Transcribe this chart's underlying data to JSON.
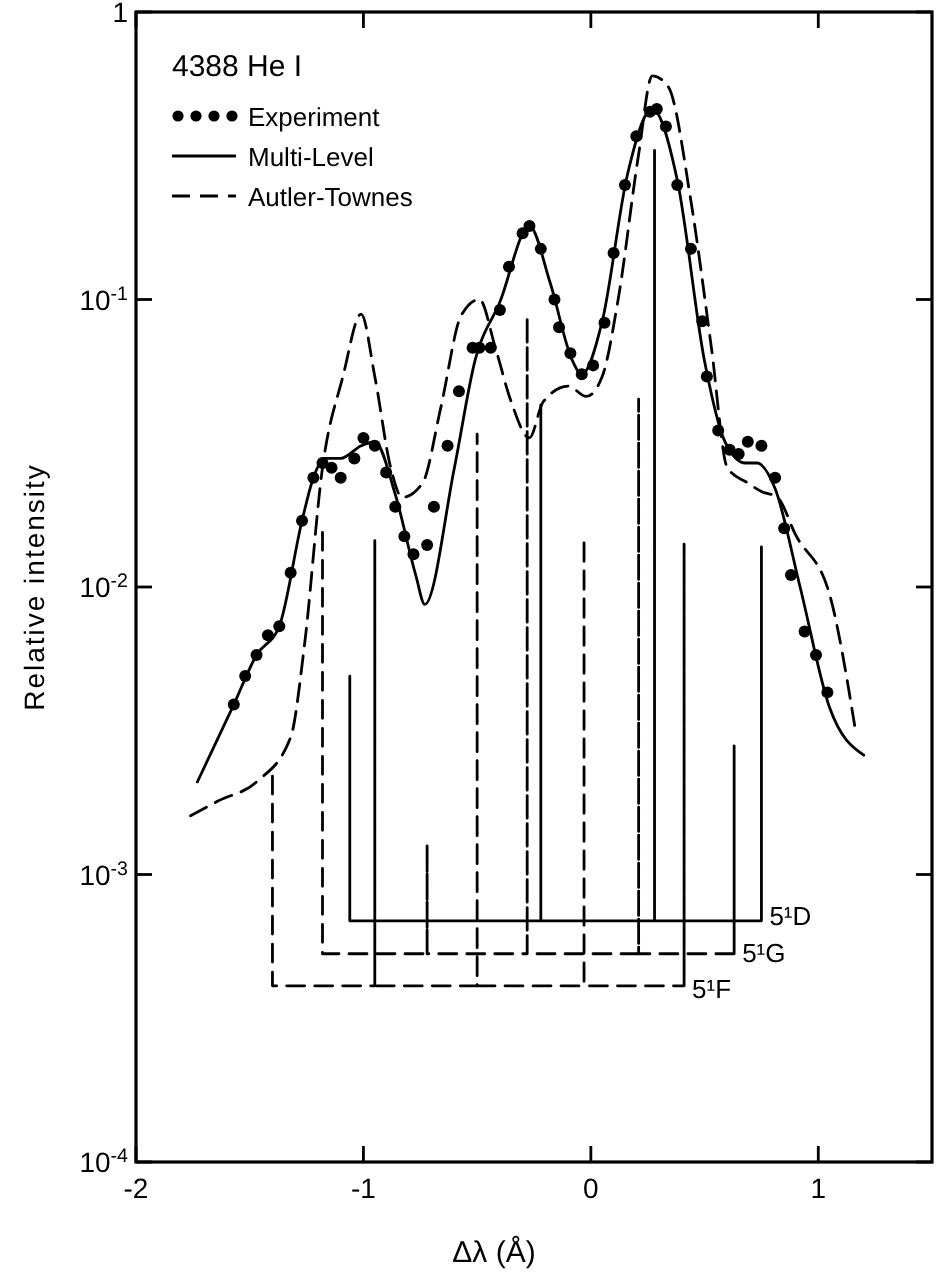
{
  "chart_data": {
    "type": "line",
    "legend_title": "4388 He I",
    "xlabel": "Δλ (Å)",
    "ylabel": "Relative intensity",
    "log": "y",
    "legend": "top left",
    "xlim": [
      -2,
      1.5
    ],
    "ylim": [
      0.0001,
      1
    ],
    "xticks": [
      -2,
      -1,
      0,
      1
    ],
    "yticks": [
      {
        "value": 0.0001,
        "label": "10$^{-4}$"
      },
      {
        "value": 0.001,
        "label": "10$^{-3}$"
      },
      {
        "value": 0.01,
        "label": "10$^{-2}$"
      },
      {
        "value": 0.1,
        "label": "10$^{-1}$"
      },
      1
    ],
    "grid": false,
    "series": [
      {
        "name": "Experiment",
        "type": "scatter",
        "marker": "circle",
        "color": "#000000",
        "x": [
          -1.57,
          -1.52,
          -1.47,
          -1.42,
          -1.37,
          -1.32,
          -1.27,
          -1.22,
          -1.18,
          -1.14,
          -1.1,
          -1.04,
          -1.0,
          -0.95,
          -0.9,
          -0.86,
          -0.82,
          -0.78,
          -0.72,
          -0.69,
          -0.63,
          -0.58,
          -0.52,
          -0.49,
          -0.44,
          -0.4,
          -0.36,
          -0.3,
          -0.27,
          -0.22,
          -0.16,
          -0.14,
          -0.09,
          -0.04,
          0.01,
          0.06,
          0.1,
          0.15,
          0.2,
          0.26,
          0.29,
          0.33,
          0.38,
          0.44,
          0.49,
          0.51,
          0.56,
          0.61,
          0.65,
          0.69,
          0.75,
          0.81,
          0.85,
          0.88,
          0.94,
          0.99,
          1.04
        ],
        "values": [
          0.0039,
          0.0049,
          0.0058,
          0.0068,
          0.0073,
          0.0112,
          0.017,
          0.024,
          0.027,
          0.026,
          0.024,
          0.028,
          0.033,
          0.031,
          0.025,
          0.019,
          0.015,
          0.013,
          0.014,
          0.019,
          0.031,
          0.048,
          0.068,
          0.068,
          0.068,
          0.092,
          0.13,
          0.17,
          0.18,
          0.15,
          0.1,
          0.08,
          0.065,
          0.055,
          0.059,
          0.083,
          0.145,
          0.25,
          0.37,
          0.45,
          0.46,
          0.4,
          0.25,
          0.15,
          0.084,
          0.054,
          0.035,
          0.03,
          0.029,
          0.032,
          0.031,
          0.024,
          0.016,
          0.011,
          0.007,
          0.0058,
          0.0043
        ]
      },
      {
        "name": "Multi-Level",
        "line_style": "solid",
        "marker": "none",
        "color": "#000000",
        "x": [
          -1.73,
          -1.57,
          -1.47,
          -1.37,
          -1.27,
          -1.22,
          -1.17,
          -1.1,
          -1.01,
          -0.95,
          -0.86,
          -0.77,
          -0.73,
          -0.6,
          -0.51,
          -0.4,
          -0.27,
          -0.18,
          -0.08,
          -0.04,
          0.05,
          0.16,
          0.27,
          0.38,
          0.5,
          0.59,
          0.68,
          0.73,
          0.81,
          0.92,
          1.05,
          1.2
        ],
        "values": [
          0.0021,
          0.0039,
          0.0058,
          0.0073,
          0.017,
          0.024,
          0.028,
          0.028,
          0.031,
          0.032,
          0.021,
          0.011,
          0.0087,
          0.026,
          0.061,
          0.098,
          0.18,
          0.115,
          0.061,
          0.055,
          0.084,
          0.27,
          0.46,
          0.26,
          0.061,
          0.032,
          0.027,
          0.027,
          0.022,
          0.01,
          0.0038,
          0.0026
        ]
      },
      {
        "name": "Autler-Townes",
        "line_style": "dashed",
        "marker": "none",
        "color": "#000000",
        "x": [
          -1.76,
          -1.64,
          -1.47,
          -1.32,
          -1.26,
          -1.18,
          -1.09,
          -1.01,
          -0.95,
          -0.88,
          -0.83,
          -0.74,
          -0.66,
          -0.57,
          -0.49,
          -0.42,
          -0.35,
          -0.27,
          -0.21,
          -0.1,
          -0.02,
          0.05,
          0.12,
          0.21,
          0.27,
          0.34,
          0.44,
          0.53,
          0.6,
          0.69,
          0.75,
          0.82,
          0.9,
          1.05,
          1.16
        ],
        "values": [
          0.0016,
          0.0018,
          0.0021,
          0.003,
          0.0062,
          0.026,
          0.054,
          0.089,
          0.054,
          0.026,
          0.0205,
          0.023,
          0.042,
          0.088,
          0.1,
          0.068,
          0.044,
          0.033,
          0.044,
          0.05,
          0.046,
          0.054,
          0.1,
          0.32,
          0.6,
          0.55,
          0.22,
          0.068,
          0.026,
          0.023,
          0.0215,
          0.0205,
          0.0152,
          0.0094,
          0.0033
        ]
      },
      {
        "name": "5¹D",
        "line_style": "solid",
        "marker": "none",
        "color": "#000000",
        "x": [
          -1.06,
          -1.06,
          -0.22,
          -0.22,
          -0.22,
          0.28,
          0.28,
          0.28,
          0.75,
          0.75,
          0.75
        ],
        "values": [
          0.0049,
          0.00069,
          0.00069,
          0.043,
          0.00069,
          0.00069,
          0.33,
          0.00069,
          0.00069,
          0.0138,
          0.00069
        ]
      },
      {
        "name": "5¹G",
        "line_style": "dashed",
        "marker": "none",
        "color": "#000000",
        "x": [
          -1.18,
          -1.18,
          -0.72,
          -0.72,
          -0.72,
          -0.28,
          -0.28,
          -0.28,
          0.21,
          0.21,
          0.21,
          0.63,
          0.63,
          0.63
        ],
        "values": [
          0.0155,
          0.00053,
          0.00053,
          0.00127,
          0.00053,
          0.00053,
          0.087,
          0.00053,
          0.00053,
          0.045,
          0.00053,
          0.00053,
          0.0028,
          0.00053
        ]
      },
      {
        "name": "5¹F",
        "line_style": "dashed",
        "marker": "none",
        "color": "#000000",
        "x": [
          -1.4,
          -1.4,
          -0.95,
          -0.95,
          -0.95,
          -0.5,
          -0.5,
          -0.5,
          -0.03,
          -0.03,
          -0.03,
          0.41,
          0.41,
          0.41
        ],
        "values": [
          0.0022,
          0.00041,
          0.00041,
          0.0145,
          0.00041,
          0.00041,
          0.034,
          0.00041,
          0.00041,
          0.0148,
          0.00041,
          0.00041,
          0.0141,
          0.00041
        ]
      }
    ]
  }
}
